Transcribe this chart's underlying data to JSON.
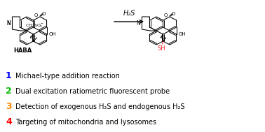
{
  "bg_color": "#ffffff",
  "arrow_label": "H₂S",
  "haba_label": "HABA",
  "sh_color": "#ff2222",
  "items": [
    {
      "number": "1",
      "color": "#0000ff",
      "text": "Michael-type addition reaction"
    },
    {
      "number": "2",
      "color": "#00bb00",
      "text": "Dual excitation ratiometric fluorescent probe"
    },
    {
      "number": "3",
      "color": "#ff8800",
      "text": "Detection of exogenous H₂S and endogenous H₂S"
    },
    {
      "number": "4",
      "color": "#ff0000",
      "text": "Targeting of mitochondria and lysosomes"
    }
  ],
  "item_fontsize": 7.0,
  "number_fontsize": 9,
  "figsize": [
    3.78,
    1.89
  ],
  "dpi": 100,
  "lw": 0.75
}
